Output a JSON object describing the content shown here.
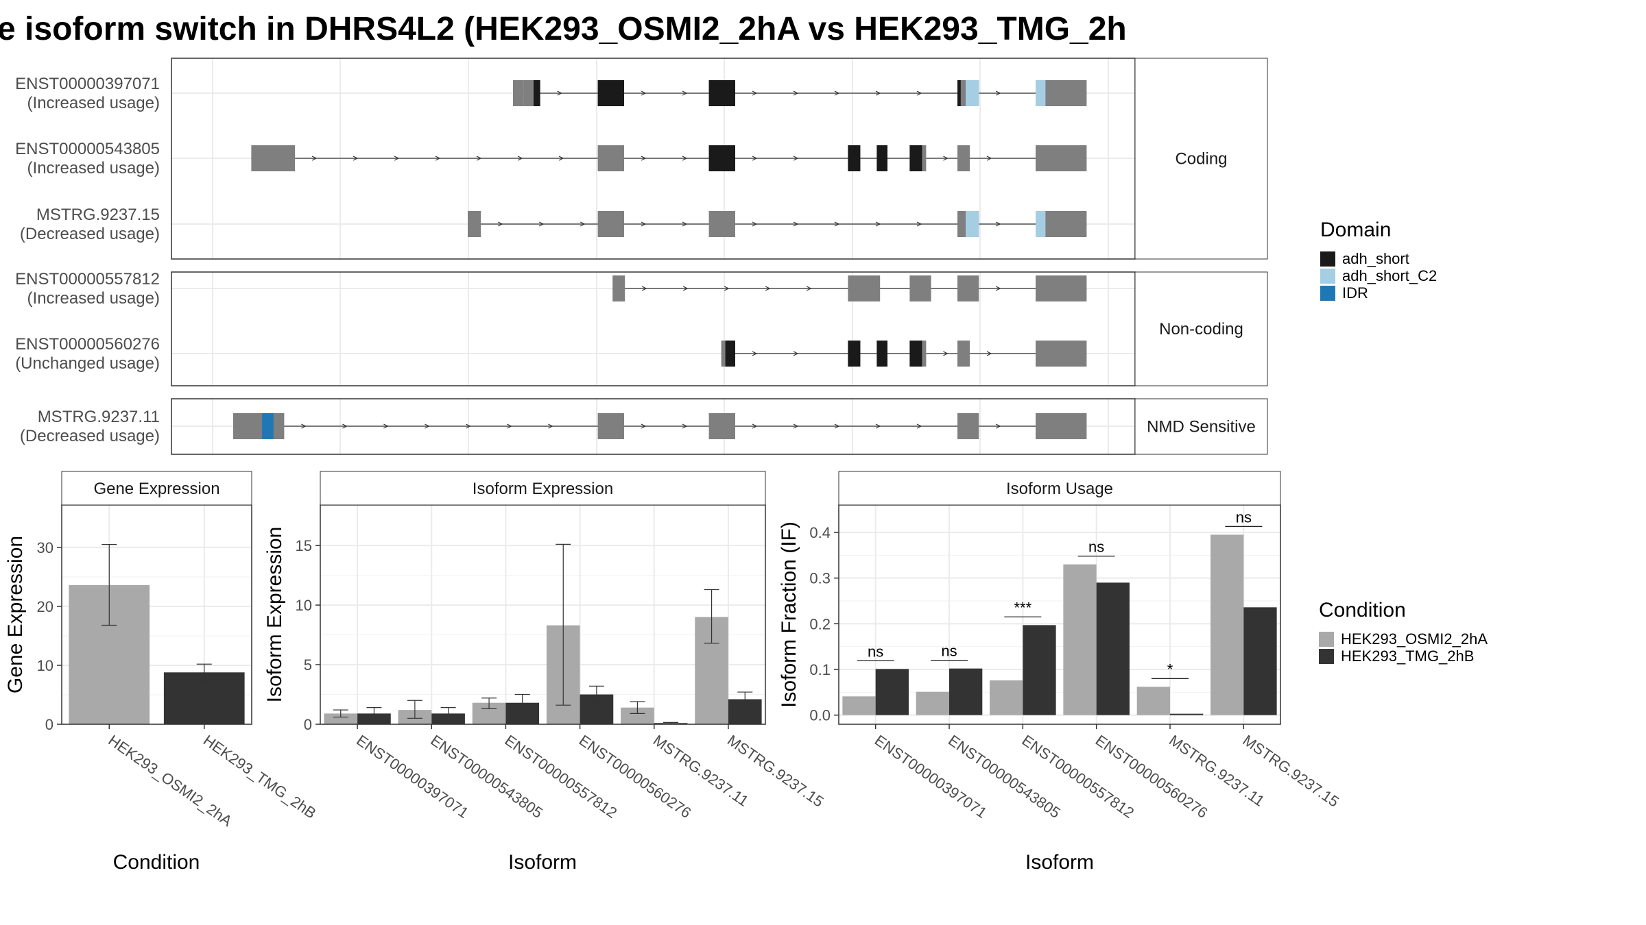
{
  "title": "e isoform switch in DHRS4L2 (HEK293_OSMI2_2hA vs HEK293_TMG_2h",
  "colors": {
    "exon": "#7f7f7f",
    "adh_short": "#1a1a1a",
    "adh_short_C2": "#a6cee3",
    "IDR": "#1f78b4",
    "cond1": "#a9a9a9",
    "cond2": "#333333"
  },
  "structure": {
    "genomic_range": [
      0,
      1000
    ],
    "facets": [
      {
        "label": "Coding",
        "transcripts": [
          {
            "id": "ENST00000397071",
            "usage": "(Increased usage)",
            "exons": [
              [
                365,
                378
              ],
              [
                378,
                398
              ],
              [
                468,
                500
              ],
              [
                603,
                635
              ],
              [
                905,
                915
              ],
              [
                915,
                931
              ],
              [
                1000,
                1008
              ],
              [
                1008,
                1062
              ]
            ],
            "domains": [
              {
                "type": "adh_short",
                "range": [
                  390,
                  398
                ]
              },
              {
                "type": "adh_short",
                "range": [
                  468,
                  500
                ]
              },
              {
                "type": "adh_short",
                "range": [
                  603,
                  635
                ]
              },
              {
                "type": "adh_short",
                "range": [
                  905,
                  909
                ]
              },
              {
                "type": "adh_short_C2",
                "range": [
                  915,
                  931
                ]
              },
              {
                "type": "adh_short_C2",
                "range": [
                  1000,
                  1012
                ]
              }
            ]
          },
          {
            "id": "ENST00000543805",
            "usage": "(Increased usage)",
            "exons": [
              [
                47,
                100
              ],
              [
                468,
                500
              ],
              [
                603,
                635
              ],
              [
                772,
                787
              ],
              [
                807,
                820
              ],
              [
                847,
                867
              ],
              [
                905,
                920
              ],
              [
                1000,
                1062
              ]
            ],
            "domains": [
              {
                "type": "adh_short",
                "range": [
                  603,
                  635
                ]
              },
              {
                "type": "adh_short",
                "range": [
                  772,
                  787
                ]
              },
              {
                "type": "adh_short",
                "range": [
                  807,
                  820
                ]
              },
              {
                "type": "adh_short",
                "range": [
                  847,
                  862
                ]
              }
            ]
          },
          {
            "id": "MSTRG.9237.15",
            "usage": "(Decreased usage)",
            "exons": [
              [
                310,
                326
              ],
              [
                468,
                500
              ],
              [
                603,
                635
              ],
              [
                905,
                915
              ],
              [
                915,
                931
              ],
              [
                1000,
                1008
              ],
              [
                1008,
                1062
              ]
            ],
            "domains": [
              {
                "type": "adh_short_C2",
                "range": [
                  915,
                  931
                ]
              },
              {
                "type": "adh_short_C2",
                "range": [
                  1000,
                  1012
                ]
              }
            ]
          }
        ]
      },
      {
        "label": "Non-coding",
        "transcripts": [
          {
            "id": "ENST00000557812",
            "usage": "(Increased usage)",
            "exons": [
              [
                486,
                501
              ],
              [
                772,
                811
              ],
              [
                847,
                873
              ],
              [
                905,
                931
              ],
              [
                1000,
                1062
              ]
            ],
            "domains": []
          },
          {
            "id": "ENST00000560276",
            "usage": "(Unchanged usage)",
            "exons": [
              [
                618,
                635
              ],
              [
                772,
                787
              ],
              [
                807,
                820
              ],
              [
                847,
                867
              ],
              [
                905,
                920
              ],
              [
                1000,
                1062
              ]
            ],
            "domains": [
              {
                "type": "adh_short",
                "range": [
                  623,
                  635
                ]
              },
              {
                "type": "adh_short",
                "range": [
                  772,
                  787
                ]
              },
              {
                "type": "adh_short",
                "range": [
                  807,
                  820
                ]
              },
              {
                "type": "adh_short",
                "range": [
                  847,
                  862
                ]
              }
            ]
          }
        ]
      },
      {
        "label": "NMD Sensitive",
        "transcripts": [
          {
            "id": "MSTRG.9237.11",
            "usage": "(Decreased usage)",
            "exons": [
              [
                25,
                87
              ],
              [
                468,
                500
              ],
              [
                603,
                635
              ],
              [
                905,
                931
              ],
              [
                1000,
                1062
              ]
            ],
            "domains": [
              {
                "type": "IDR",
                "range": [
                  60,
                  74
                ]
              }
            ]
          }
        ]
      }
    ]
  },
  "chart_data": [
    {
      "type": "bar",
      "strip": "Gene Expression",
      "xlabel": "Condition",
      "ylabel": "Gene Expression",
      "ylim": [
        0,
        37.2
      ],
      "yticks": [
        0,
        10,
        20,
        30
      ],
      "categories": [
        "HEK293_OSMI2_2hA",
        "HEK293_TMG_2hB"
      ],
      "values": [
        23.6,
        8.8
      ],
      "errors": [
        [
          16.8,
          30.5
        ],
        [
          7.3,
          10.2
        ]
      ]
    },
    {
      "type": "bar",
      "strip": "Isoform Expression",
      "xlabel": "Isoform",
      "ylabel": "Isoform Expression",
      "ylim": [
        0,
        18.4
      ],
      "yticks": [
        0,
        5,
        10,
        15
      ],
      "categories": [
        "ENST00000397071",
        "ENST00000543805",
        "ENST00000557812",
        "ENST00000560276",
        "MSTRG.9237.11",
        "MSTRG.9237.15"
      ],
      "series": [
        {
          "name": "HEK293_OSMI2_2hA",
          "values": [
            0.9,
            1.2,
            1.8,
            8.3,
            1.4,
            9.0
          ],
          "errors": [
            [
              0.6,
              1.2
            ],
            [
              0.5,
              2.0
            ],
            [
              1.3,
              2.2
            ],
            [
              1.6,
              15.1
            ],
            [
              0.9,
              1.9
            ],
            [
              6.8,
              11.3
            ]
          ]
        },
        {
          "name": "HEK293_TMG_2hB",
          "values": [
            0.9,
            0.9,
            1.8,
            2.5,
            0.1,
            2.1
          ],
          "errors": [
            [
              0.4,
              1.4
            ],
            [
              0.4,
              1.4
            ],
            [
              1.1,
              2.5
            ],
            [
              1.8,
              3.2
            ],
            [
              0.05,
              0.15
            ],
            [
              1.5,
              2.7
            ]
          ]
        }
      ]
    },
    {
      "type": "bar",
      "strip": "Isoform Usage",
      "xlabel": "Isoform",
      "ylabel": "Isoform Fraction (IF)",
      "ylim": [
        -0.02,
        0.46
      ],
      "yticks": [
        0.0,
        0.1,
        0.2,
        0.3,
        0.4
      ],
      "ytick_labels": [
        "0.0",
        "0.1",
        "0.2",
        "0.3",
        "0.4"
      ],
      "categories": [
        "ENST00000397071",
        "ENST00000543805",
        "ENST00000557812",
        "ENST00000560276",
        "MSTRG.9237.11",
        "MSTRG.9237.15"
      ],
      "series": [
        {
          "name": "HEK293_OSMI2_2hA",
          "values": [
            0.041,
            0.051,
            0.076,
            0.33,
            0.062,
            0.395
          ]
        },
        {
          "name": "HEK293_TMG_2hB",
          "values": [
            0.101,
            0.102,
            0.197,
            0.29,
            0.003,
            0.236
          ]
        }
      ],
      "significance": [
        "ns",
        "ns",
        "***",
        "ns",
        "*",
        "ns"
      ]
    }
  ],
  "legends": {
    "domain": {
      "title": "Domain",
      "items": [
        {
          "label": "adh_short",
          "color": "#1a1a1a"
        },
        {
          "label": "adh_short_C2",
          "color": "#a6cee3"
        },
        {
          "label": "IDR",
          "color": "#1f78b4"
        }
      ]
    },
    "condition": {
      "title": "Condition",
      "items": [
        {
          "label": "HEK293_OSMI2_2hA",
          "color": "#a9a9a9"
        },
        {
          "label": "HEK293_TMG_2hB",
          "color": "#333333"
        }
      ]
    }
  }
}
